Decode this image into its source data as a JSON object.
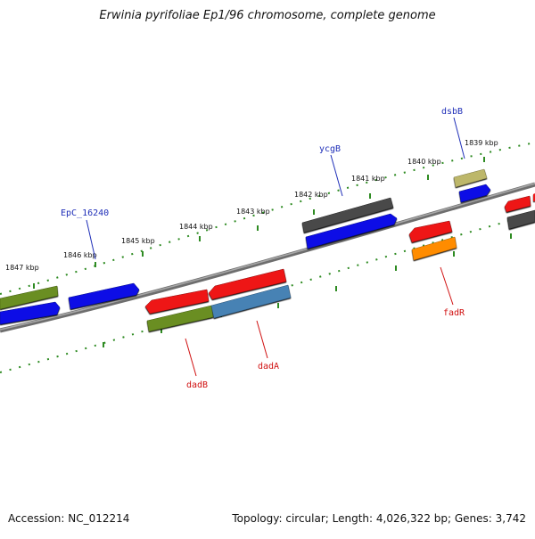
{
  "title": "Erwinia pyrifoliae Ep1/96 chromosome, complete genome",
  "footer": {
    "accession": "Accession: NC_012214",
    "summary": "Topology: circular; Length: 4,026,322 bp; Genes: 3,742"
  },
  "colors": {
    "backbone": "#808080",
    "tick": "#2e8b22",
    "forward_label": "#1f2fb8",
    "reverse_label": "#d01010",
    "blue": "#0a10e6",
    "red": "#ee1515",
    "olive": "#6b8e23",
    "steelblue": "#4682b4",
    "gray": "#4a4a4a",
    "khaki": "#bdb76b",
    "orange": "#ff8c00"
  },
  "scale": {
    "ticks": [
      {
        "label": "1847 kbp"
      },
      {
        "label": "1846 kbp"
      },
      {
        "label": "1845 kbp"
      },
      {
        "label": "1844 kbp"
      },
      {
        "label": "1843 kbp"
      },
      {
        "label": "1842 kbp"
      },
      {
        "label": "1841 kbp"
      },
      {
        "label": "1840 kbp"
      },
      {
        "label": "1839 kbp"
      }
    ]
  },
  "genes": [
    {
      "label": "EpC_16240",
      "strand": "forward",
      "color": "blue"
    },
    {
      "label": "ycgB",
      "strand": "forward",
      "color": "gray"
    },
    {
      "label": "dsbB",
      "strand": "forward",
      "color": "khaki"
    },
    {
      "label": "dadB",
      "strand": "reverse",
      "color": "olive"
    },
    {
      "label": "dadA",
      "strand": "reverse",
      "color": "steelblue"
    },
    {
      "label": "fadR",
      "strand": "reverse",
      "color": "orange"
    }
  ]
}
